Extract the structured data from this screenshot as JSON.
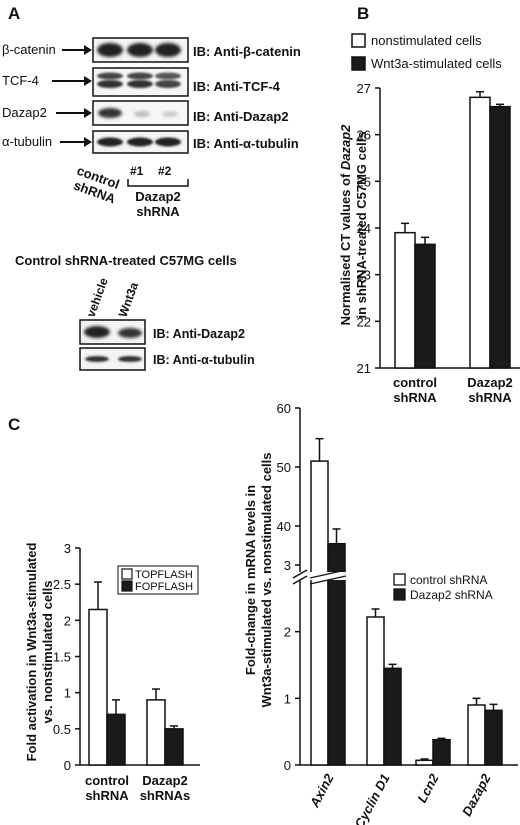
{
  "panels": {
    "a": "A",
    "b": "B",
    "c": "C"
  },
  "blotA": {
    "rows": [
      {
        "left": "β-catenin",
        "ib": "IB: Anti-β-catenin"
      },
      {
        "left": "TCF-4",
        "ib": "IB: Anti-TCF-4"
      },
      {
        "left": "Dazap2",
        "ib": "IB: Anti-Dazap2"
      },
      {
        "left": "α-tubulin",
        "ib": "IB: Anti-α-tubulin"
      }
    ],
    "lane_control_1": "control",
    "lane_control_2": "shRNA",
    "lane_num_1": "#1",
    "lane_num_2": "#2",
    "lane_dazap_1": "Dazap2",
    "lane_dazap_2": "shRNA"
  },
  "blotA2": {
    "title": "Control shRNA-treated C57MG cells",
    "lanes": [
      "vehicle",
      "Wnt3a"
    ],
    "ib1": "IB: Anti-Dazap2",
    "ib2": "IB: Anti-α-tubulin"
  },
  "chart_data": [
    {
      "id": "B",
      "type": "bar",
      "ylabel_line1": "Normalised CT values of ",
      "ylabel_italic": "Dazap2",
      "ylabel_line2": "in shRNA-treated C57MG cells",
      "categories": [
        [
          "control",
          "shRNA"
        ],
        [
          "Dazap2",
          "shRNA"
        ]
      ],
      "series": [
        {
          "name": "nonstimulated cells",
          "values": [
            23.9,
            26.8
          ],
          "errors": [
            0.2,
            0.12
          ],
          "color": "#ffffff"
        },
        {
          "name": "Wnt3a-stimulated cells",
          "values": [
            23.65,
            26.6
          ],
          "errors": [
            0.15,
            0.05
          ],
          "color": "#1a1a1a"
        }
      ],
      "ylim": [
        21,
        27
      ],
      "yticks": [
        "21",
        "22",
        "23",
        "24",
        "25",
        "26",
        "27"
      ]
    },
    {
      "id": "C1",
      "type": "bar",
      "ylabel_line1": "Fold activation in Wnt3a-stimulated",
      "ylabel_line2": "vs. nonstimulated cells",
      "categories": [
        [
          "control",
          "shRNA"
        ],
        [
          "Dazap2",
          "shRNAs"
        ]
      ],
      "series": [
        {
          "name": "TOPFLASH",
          "values": [
            2.15,
            0.9
          ],
          "errors": [
            0.38,
            0.15
          ],
          "color": "#ffffff"
        },
        {
          "name": "FOPFLASH",
          "values": [
            0.7,
            0.5
          ],
          "errors": [
            0.2,
            0.04
          ],
          "color": "#1a1a1a"
        }
      ],
      "ylim": [
        0,
        3
      ],
      "yticks": [
        "0",
        "0.5",
        "1",
        "1.5",
        "2",
        "2.5",
        "3"
      ]
    },
    {
      "id": "C2",
      "type": "bar",
      "ylabel_line1": "Fold-change in mRNA levels in",
      "ylabel_line2": "Wnt3a-stimulated vs. nonstimulated cells",
      "categories": [
        "Axin2",
        "Cyclin D1",
        "Lcn2",
        "Dazap2"
      ],
      "series": [
        {
          "name": "control  shRNA",
          "values": [
            51,
            2.22,
            0.07,
            0.9
          ],
          "errors": [
            3.8,
            0.12,
            0.02,
            0.1
          ],
          "color": "#ffffff"
        },
        {
          "name": "Dazap2 shRNA",
          "values": [
            37,
            1.45,
            0.38,
            0.82
          ],
          "errors": [
            2.5,
            0.06,
            0.02,
            0.09
          ],
          "color": "#1a1a1a"
        }
      ],
      "ylim_lower": [
        0,
        3
      ],
      "ylim_upper": [
        30,
        60
      ],
      "yticks_lower": [
        "0",
        "1",
        "2",
        "3"
      ],
      "yticks_upper": [
        "40",
        "50",
        "60"
      ],
      "axis_break": true
    }
  ]
}
